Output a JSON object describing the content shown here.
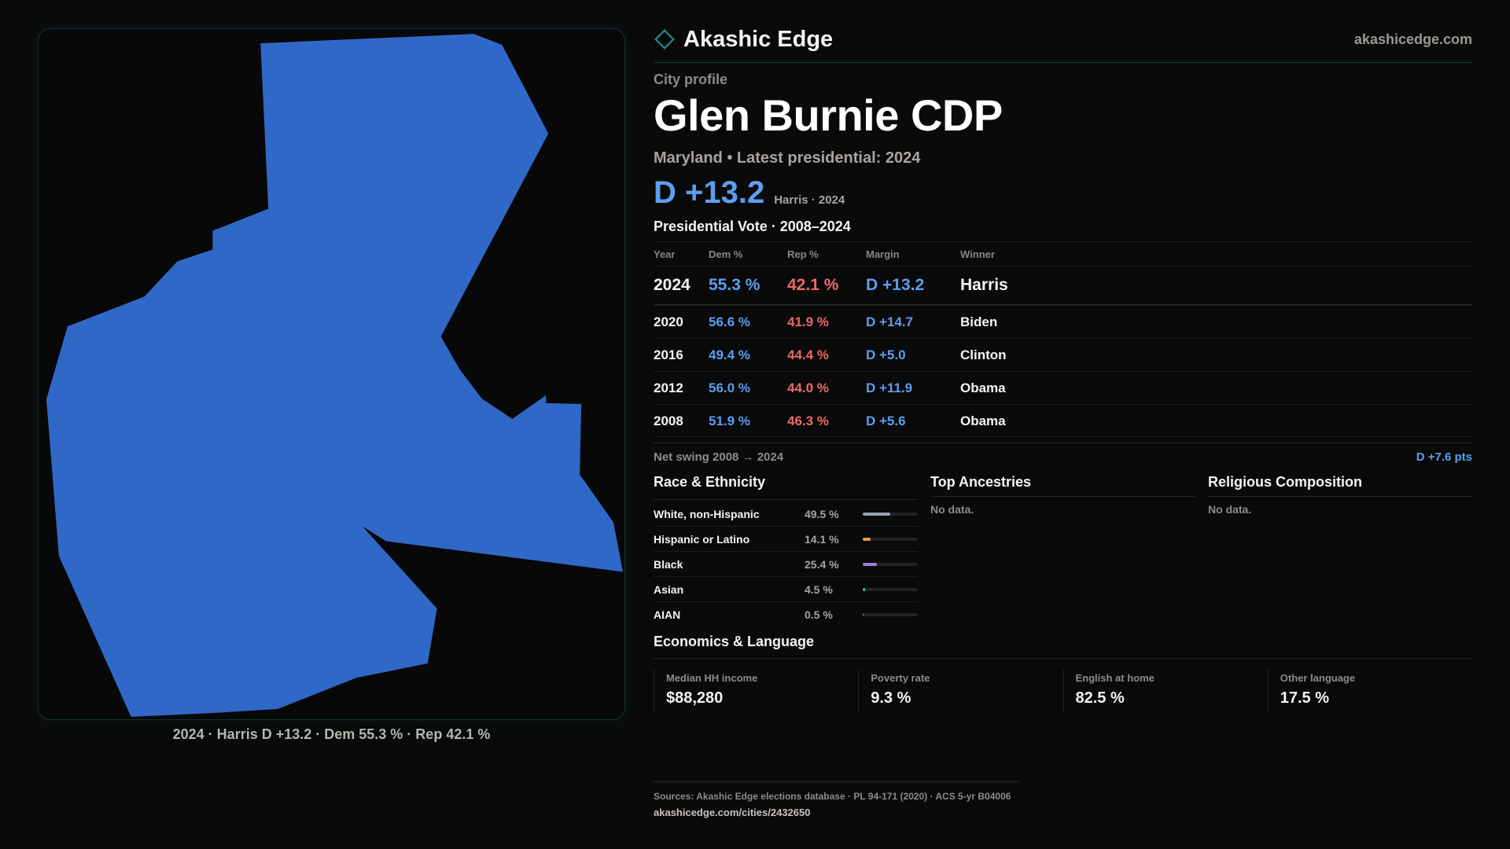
{
  "map": {
    "fill_color": "#3068c8",
    "caption": "2024 · Harris D +13.2 · Dem 55.3 % · Rep 42.1 %"
  },
  "brand": {
    "name": "Akashic Edge",
    "url": "akashicedge.com",
    "logo_icon": "diamond-outline-icon",
    "accent": "#1f8a8e"
  },
  "profile": {
    "kicker": "City profile",
    "title": "Glen Burnie CDP",
    "subtitle": "Maryland • Latest presidential: 2024",
    "headline_margin": "D +13.2",
    "headline_note": "Harris · 2024"
  },
  "vote": {
    "section_title": "Presidential Vote · 2008–2024",
    "headers": {
      "year": "Year",
      "dem": "Dem %",
      "rep": "Rep %",
      "margin": "Margin",
      "winner": "Winner"
    },
    "rows": [
      {
        "year": "2024",
        "dem": "55.3 %",
        "rep": "42.1 %",
        "margin": "D +13.2",
        "winner": "Harris"
      },
      {
        "year": "2020",
        "dem": "56.6 %",
        "rep": "41.9 %",
        "margin": "D +14.7",
        "winner": "Biden"
      },
      {
        "year": "2016",
        "dem": "49.4 %",
        "rep": "44.4 %",
        "margin": "D +5.0",
        "winner": "Clinton"
      },
      {
        "year": "2012",
        "dem": "56.0 %",
        "rep": "44.0 %",
        "margin": "D +11.9",
        "winner": "Obama"
      },
      {
        "year": "2008",
        "dem": "51.9 %",
        "rep": "46.3 %",
        "margin": "D +5.6",
        "winner": "Obama"
      }
    ],
    "swing_label": "Net swing 2008 → 2024",
    "swing_value": "D +7.6 pts",
    "colors": {
      "dem": "#5c9ef0",
      "rep": "#ee6868"
    }
  },
  "race": {
    "title": "Race & Ethnicity",
    "items": [
      {
        "name": "White, non-Hispanic",
        "pct": "49.5 %",
        "share": 49.5,
        "color": "#9aa3ad"
      },
      {
        "name": "Hispanic or Latino",
        "pct": "14.1 %",
        "share": 14.1,
        "color": "#e0a23a"
      },
      {
        "name": "Black",
        "pct": "25.4 %",
        "share": 25.4,
        "color": "#9c7ddc"
      },
      {
        "name": "Asian",
        "pct": "4.5 %",
        "share": 4.5,
        "color": "#3ec4a8"
      },
      {
        "name": "AIAN",
        "pct": "0.5 %",
        "share": 0.5,
        "color": "#e07a3a"
      }
    ]
  },
  "ancestries": {
    "title": "Top Ancestries",
    "empty": "No data."
  },
  "religion": {
    "title": "Religious Composition",
    "empty": "No data."
  },
  "economics": {
    "title": "Economics & Language",
    "cards": [
      {
        "label": "Median HH income",
        "value": "$88,280"
      },
      {
        "label": "Poverty rate",
        "value": "9.3 %"
      },
      {
        "label": "English at home",
        "value": "82.5 %"
      },
      {
        "label": "Other language",
        "value": "17.5 %"
      }
    ]
  },
  "footer": {
    "sources": "Sources: Akashic Edge elections database · PL 94-171 (2020) · ACS 5-yr B04006",
    "url": "akashicedge.com/cities/2432650"
  }
}
